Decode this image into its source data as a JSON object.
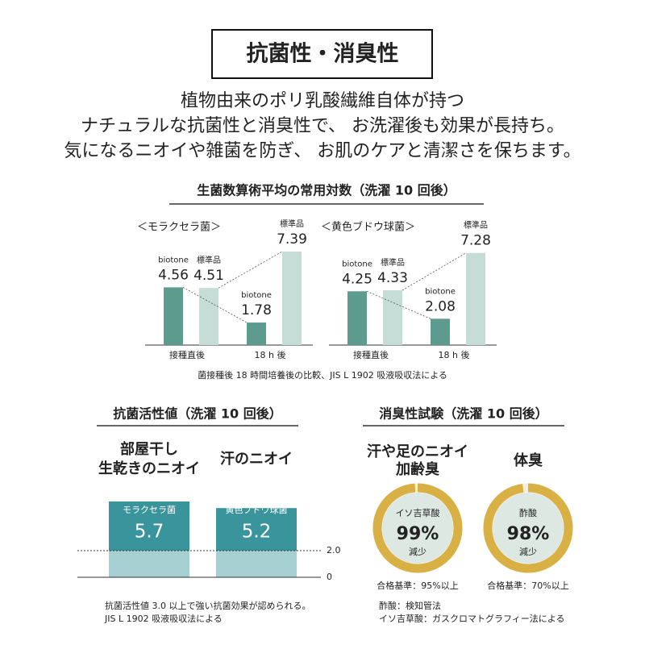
{
  "header": {
    "title": "抗菌性・消臭性",
    "lines": [
      "植物由来のポリ乳酸繊維自体が持つ",
      "ナチュラルな抗菌性と消臭性で、 お洗濯後も効果が長持ち。",
      "気になるニオイや雑菌を防ぎ、 お肌のケアと清潔さを保ちます。"
    ]
  },
  "sections": {
    "viable": {
      "title": "生菌数算術平均の常用対数（洗濯 10 回後）",
      "note": "菌接種後 18 時間培養後の比較、JIS L 1902 吸液吸収法による"
    },
    "antibacterial": {
      "title": "抗菌活性値（洗濯 10 回後）",
      "note": [
        "抗菌活性値 3.0 以上で強い抗菌効果が認められる。",
        "JIS L 1902 吸液吸収法による"
      ]
    },
    "deodorant": {
      "title": "消臭性試験（洗濯 10 回後）",
      "note": [
        "酢酸：検知管法",
        "イソ吉草酸：ガスクロマトグラフィー法による"
      ]
    }
  },
  "chart_data": [
    {
      "type": "bar",
      "subtitle": "＜モラクセラ菌＞",
      "categories": [
        "接種直後",
        "18 h 後"
      ],
      "series": [
        {
          "name": "biotone",
          "color": "#5e9b8f",
          "values": [
            4.56,
            1.78
          ]
        },
        {
          "name": "標準品",
          "color": "#c5ddd6",
          "values": [
            4.51,
            7.39
          ]
        }
      ]
    },
    {
      "type": "bar",
      "subtitle": "＜黄色ブドウ球菌＞",
      "categories": [
        "接種直後",
        "18 h 後"
      ],
      "series": [
        {
          "name": "biotone",
          "color": "#5e9b8f",
          "values": [
            4.25,
            2.08
          ]
        },
        {
          "name": "標準品",
          "color": "#c5ddd6",
          "values": [
            4.33,
            7.28
          ]
        }
      ]
    },
    {
      "type": "activity",
      "categories": [
        [
          "部屋干し",
          "生乾きのニオイ"
        ],
        [
          "汗のニオイ"
        ]
      ],
      "bar_labels": [
        "モラクセラ菌",
        "黄色ブドウ球菌"
      ],
      "values": [
        5.7,
        5.2
      ],
      "color": "#3a949b",
      "ylim": [
        0,
        6
      ],
      "yticks": [
        {
          "value": 2,
          "label": "2.0"
        },
        0
      ]
    },
    {
      "type": "donut",
      "title": [
        "汗や足のニオイ",
        "加齢臭"
      ],
      "label": "イソ吉草酸",
      "values": [
        99
      ],
      "value_labels": [
        "99%"
      ],
      "caption": "減少",
      "criterion": "合格基準：95%以上",
      "color": "#d8b044"
    },
    {
      "type": "donut",
      "title": [
        "体臭"
      ],
      "label": "酢酸",
      "values": [
        98
      ],
      "value_labels": [
        "98%"
      ],
      "caption": "減少",
      "criterion": "合格基準：70%以上",
      "color": "#d8b044"
    }
  ]
}
